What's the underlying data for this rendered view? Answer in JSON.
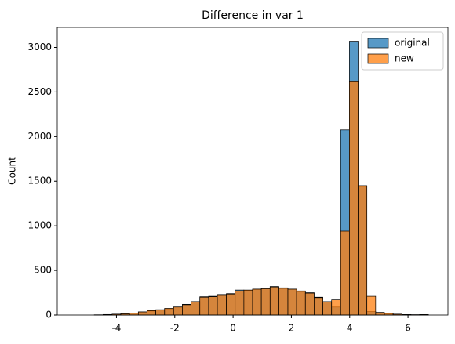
{
  "chart_data": {
    "type": "histogram",
    "title": "Difference in var 1",
    "y_label": "Count",
    "bins": [
      -5.36,
      -5.06,
      -4.76,
      -4.46,
      -4.15,
      -3.85,
      -3.55,
      -3.25,
      -2.95,
      -2.65,
      -2.35,
      -2.04,
      -1.74,
      -1.44,
      -1.14,
      -0.84,
      -0.54,
      -0.23,
      0.07,
      0.37,
      0.67,
      0.97,
      1.27,
      1.57,
      1.88,
      2.18,
      2.48,
      2.78,
      3.08,
      3.38,
      3.69,
      3.99,
      4.29,
      4.59,
      4.89,
      5.19,
      5.49,
      5.8,
      6.1,
      6.4,
      6.7
    ],
    "series": [
      {
        "name": "original",
        "color": "#1f77b4",
        "values": [
          0,
          0,
          2,
          5,
          10,
          15,
          20,
          35,
          45,
          55,
          70,
          90,
          120,
          150,
          205,
          210,
          230,
          240,
          280,
          275,
          290,
          300,
          320,
          305,
          290,
          270,
          250,
          200,
          150,
          90,
          2075,
          3070,
          1440,
          40,
          25,
          15,
          10,
          5,
          3,
          5
        ]
      },
      {
        "name": "new",
        "color": "#ff7f0e",
        "values": [
          0,
          0,
          2,
          6,
          10,
          14,
          22,
          35,
          50,
          60,
          75,
          90,
          115,
          150,
          200,
          205,
          220,
          235,
          270,
          280,
          290,
          295,
          315,
          300,
          290,
          265,
          245,
          195,
          145,
          170,
          940,
          2615,
          1450,
          210,
          30,
          20,
          10,
          5,
          3,
          5
        ]
      }
    ],
    "xlim": [
      -6.03,
      7.37
    ],
    "ylim": [
      0,
      3224
    ],
    "xticks": [
      -4,
      -2,
      0,
      2,
      4,
      6
    ],
    "yticks": [
      0,
      500,
      1000,
      1500,
      2000,
      2500,
      3000
    ],
    "legend": "upper right",
    "alpha": 0.75
  }
}
